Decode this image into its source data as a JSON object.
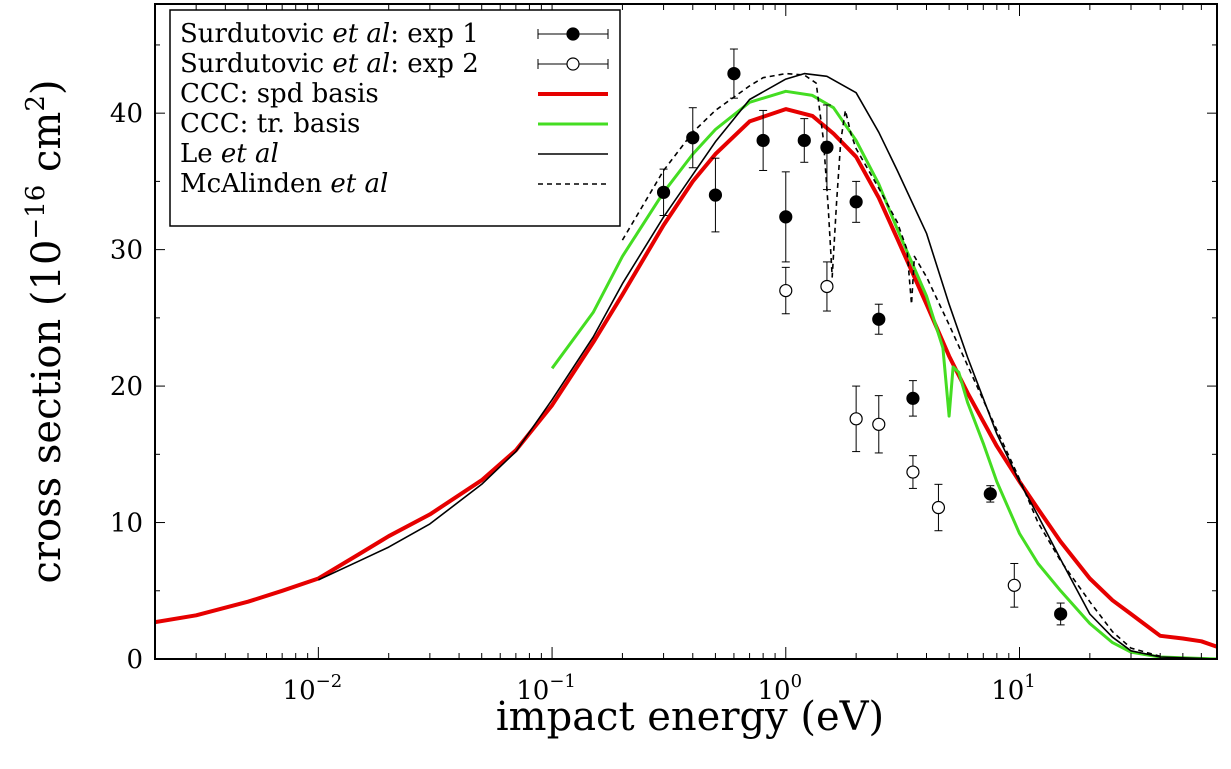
{
  "chart_data": {
    "type": "line",
    "xlabel": "impact energy (eV)",
    "ylabel_parts": {
      "pre": "cross section (10",
      "sup1": "−16",
      "mid": " cm",
      "sup2": "2",
      "post": ")"
    },
    "x_scale": "log",
    "xlim": [
      0.002,
      70
    ],
    "ylim": [
      0,
      48
    ],
    "x_ticks": [
      {
        "value": 0.01,
        "base": "10",
        "exp": "−2"
      },
      {
        "value": 0.1,
        "base": "10",
        "exp": "−1"
      },
      {
        "value": 1,
        "base": "10",
        "exp": "0"
      },
      {
        "value": 10,
        "base": "10",
        "exp": "1"
      }
    ],
    "y_ticks": [
      0,
      10,
      20,
      30,
      40
    ],
    "legend_position": "top-left",
    "legend": [
      {
        "parts": [
          {
            "t": "Surdutovic "
          },
          {
            "t": "et al",
            "i": true
          },
          {
            "t": ": exp 1"
          }
        ],
        "key": "exp1"
      },
      {
        "parts": [
          {
            "t": "Surdutovic "
          },
          {
            "t": "et al",
            "i": true
          },
          {
            "t": ": exp 2"
          }
        ],
        "key": "exp2"
      },
      {
        "parts": [
          {
            "t": "CCC: spd basis"
          }
        ],
        "key": "ccc_spd"
      },
      {
        "parts": [
          {
            "t": "CCC: tr. basis"
          }
        ],
        "key": "ccc_tr"
      },
      {
        "parts": [
          {
            "t": "Le "
          },
          {
            "t": "et al",
            "i": true
          }
        ],
        "key": "le"
      },
      {
        "parts": [
          {
            "t": "McAlinden "
          },
          {
            "t": "et al",
            "i": true
          }
        ],
        "key": "mcalinden"
      }
    ],
    "series": [
      {
        "name": "CCC: spd basis",
        "key": "ccc_spd",
        "kind": "line",
        "color": "#e60000",
        "width": 4,
        "dash": "",
        "points": [
          [
            0.002,
            2.7
          ],
          [
            0.003,
            3.2
          ],
          [
            0.005,
            4.2
          ],
          [
            0.007,
            5.0
          ],
          [
            0.01,
            5.9
          ],
          [
            0.015,
            7.7
          ],
          [
            0.02,
            9.0
          ],
          [
            0.03,
            10.6
          ],
          [
            0.05,
            13.1
          ],
          [
            0.07,
            15.3
          ],
          [
            0.1,
            18.6
          ],
          [
            0.15,
            23.2
          ],
          [
            0.2,
            26.7
          ],
          [
            0.3,
            31.8
          ],
          [
            0.4,
            35.0
          ],
          [
            0.5,
            37.0
          ],
          [
            0.7,
            39.4
          ],
          [
            1.0,
            40.3
          ],
          [
            1.3,
            39.8
          ],
          [
            1.6,
            38.5
          ],
          [
            2.0,
            36.8
          ],
          [
            2.5,
            33.8
          ],
          [
            3.0,
            30.8
          ],
          [
            4.0,
            26.0
          ],
          [
            5.0,
            22.2
          ],
          [
            6.0,
            19.5
          ],
          [
            7.0,
            17.4
          ],
          [
            8.0,
            15.6
          ],
          [
            10.0,
            13.0
          ],
          [
            12.0,
            11.0
          ],
          [
            15.0,
            8.6
          ],
          [
            20.0,
            5.9
          ],
          [
            25.0,
            4.3
          ],
          [
            30.0,
            3.3
          ],
          [
            40.0,
            1.7
          ],
          [
            50.0,
            1.5
          ],
          [
            60.0,
            1.3
          ],
          [
            70.0,
            0.9
          ]
        ]
      },
      {
        "name": "CCC: tr. basis",
        "key": "ccc_tr",
        "kind": "line",
        "color": "#44dd22",
        "width": 3,
        "dash": "",
        "points": [
          [
            0.1,
            21.3
          ],
          [
            0.15,
            25.4
          ],
          [
            0.2,
            29.5
          ],
          [
            0.3,
            34.2
          ],
          [
            0.4,
            37.0
          ],
          [
            0.5,
            38.8
          ],
          [
            0.7,
            40.8
          ],
          [
            1.0,
            41.6
          ],
          [
            1.3,
            41.3
          ],
          [
            1.6,
            40.4
          ],
          [
            2.0,
            38.0
          ],
          [
            2.5,
            34.8
          ],
          [
            3.0,
            31.5
          ],
          [
            4.0,
            26.6
          ],
          [
            4.7,
            22.8
          ],
          [
            5.0,
            17.8
          ],
          [
            5.2,
            21.4
          ],
          [
            5.5,
            21.0
          ],
          [
            6.0,
            18.8
          ],
          [
            7.0,
            15.8
          ],
          [
            8.0,
            13.0
          ],
          [
            10.0,
            9.2
          ],
          [
            12.0,
            7.0
          ],
          [
            15.0,
            5.0
          ],
          [
            20.0,
            2.6
          ],
          [
            25.0,
            1.2
          ],
          [
            30.0,
            0.5
          ],
          [
            40.0,
            0.15
          ],
          [
            70.0,
            0.0
          ]
        ]
      },
      {
        "name": "Le et al",
        "key": "le",
        "kind": "line",
        "color": "#000000",
        "width": 1.6,
        "dash": "",
        "points": [
          [
            0.01,
            5.8
          ],
          [
            0.015,
            7.2
          ],
          [
            0.02,
            8.2
          ],
          [
            0.03,
            9.9
          ],
          [
            0.05,
            12.8
          ],
          [
            0.07,
            15.2
          ],
          [
            0.1,
            19.0
          ],
          [
            0.15,
            23.6
          ],
          [
            0.2,
            27.5
          ],
          [
            0.3,
            32.4
          ],
          [
            0.4,
            35.5
          ],
          [
            0.5,
            37.9
          ],
          [
            0.7,
            41.0
          ],
          [
            1.0,
            42.5
          ],
          [
            1.2,
            42.9
          ],
          [
            1.5,
            42.7
          ],
          [
            2.0,
            41.5
          ],
          [
            2.5,
            38.6
          ],
          [
            3.0,
            35.8
          ],
          [
            4.0,
            31.2
          ],
          [
            5.0,
            26.0
          ],
          [
            6.0,
            22.1
          ],
          [
            8.0,
            16.5
          ],
          [
            10.0,
            13.0
          ],
          [
            12.0,
            10.5
          ],
          [
            15.0,
            7.3
          ],
          [
            20.0,
            3.3
          ],
          [
            25.0,
            1.6
          ],
          [
            30.0,
            0.6
          ],
          [
            40.0,
            0.15
          ],
          [
            70.0,
            0.0
          ]
        ]
      },
      {
        "name": "McAlinden et al",
        "key": "mcalinden",
        "kind": "line",
        "color": "#000000",
        "width": 1.6,
        "dash": "5,4",
        "points": [
          [
            0.2,
            30.7
          ],
          [
            0.3,
            35.8
          ],
          [
            0.4,
            38.6
          ],
          [
            0.5,
            40.2
          ],
          [
            0.7,
            42.0
          ],
          [
            0.8,
            42.6
          ],
          [
            1.0,
            42.9
          ],
          [
            1.2,
            42.8
          ],
          [
            1.35,
            42.2
          ],
          [
            1.45,
            38.0
          ],
          [
            1.52,
            33.0
          ],
          [
            1.58,
            28.0
          ],
          [
            1.65,
            33.5
          ],
          [
            1.72,
            38.0
          ],
          [
            1.8,
            40.2
          ],
          [
            1.9,
            38.5
          ],
          [
            2.0,
            37.4
          ],
          [
            2.5,
            34.5
          ],
          [
            3.0,
            32.0
          ],
          [
            3.3,
            30.0
          ],
          [
            3.45,
            26.0
          ],
          [
            3.55,
            29.5
          ],
          [
            4.0,
            28.0
          ],
          [
            5.0,
            24.5
          ],
          [
            6.0,
            21.5
          ],
          [
            8.0,
            16.8
          ],
          [
            10.0,
            13.2
          ],
          [
            12.0,
            10.0
          ],
          [
            15.0,
            7.2
          ],
          [
            20.0,
            4.2
          ],
          [
            25.0,
            2.0
          ],
          [
            30.0,
            0.8
          ],
          [
            40.0,
            0.2
          ]
        ]
      },
      {
        "name": "Surdutovic et al: exp 1",
        "key": "exp1",
        "kind": "points",
        "marker": "filled",
        "points": [
          [
            0.3,
            34.2,
            1.7
          ],
          [
            0.4,
            38.2,
            2.2
          ],
          [
            0.5,
            34.0,
            2.7
          ],
          [
            0.6,
            42.9,
            1.8
          ],
          [
            0.8,
            38.0,
            2.2
          ],
          [
            1.0,
            32.4,
            3.3
          ],
          [
            1.2,
            38.0,
            1.6
          ],
          [
            1.5,
            37.5,
            3.1
          ],
          [
            2.0,
            33.5,
            1.5
          ],
          [
            2.5,
            24.9,
            1.1
          ],
          [
            3.5,
            19.1,
            1.3
          ],
          [
            7.5,
            12.1,
            0.6
          ],
          [
            15.0,
            3.3,
            0.8
          ]
        ]
      },
      {
        "name": "Surdutovic et al: exp 2",
        "key": "exp2",
        "kind": "points",
        "marker": "open",
        "points": [
          [
            1.0,
            27.0,
            1.7
          ],
          [
            1.5,
            27.3,
            1.8
          ],
          [
            2.0,
            17.6,
            2.4
          ],
          [
            2.5,
            17.2,
            2.1
          ],
          [
            3.5,
            13.7,
            1.2
          ],
          [
            4.5,
            11.1,
            1.7
          ],
          [
            9.5,
            5.4,
            1.6
          ]
        ]
      }
    ]
  }
}
